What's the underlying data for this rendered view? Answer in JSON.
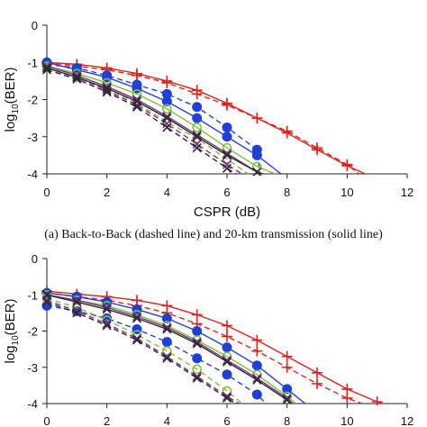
{
  "figure": {
    "caption_a": "(a) Back-to-Back (dashed line) and 20-km transmission (solid line)"
  },
  "chart_data": [
    {
      "type": "line",
      "panel": "a",
      "xlabel": "CSPR (dB)",
      "ylabel": "log10(BER)",
      "xlim": [
        0,
        12
      ],
      "ylim": [
        -4,
        0
      ],
      "xticks": [
        0,
        2,
        4,
        6,
        8,
        10,
        12
      ],
      "yticks": [
        0,
        -1,
        -2,
        -3,
        -4
      ],
      "grid": false,
      "legend": "none",
      "series": [
        {
          "color": "#e0201c",
          "marker": "plus",
          "dashed": false,
          "x": [
            0,
            1,
            2,
            3,
            4,
            5,
            6,
            7,
            8,
            9,
            10,
            10.6
          ],
          "y": [
            -1.0,
            -1.05,
            -1.15,
            -1.3,
            -1.5,
            -1.75,
            -2.1,
            -2.5,
            -2.9,
            -3.35,
            -3.78,
            -4.0
          ]
        },
        {
          "color": "#e0201c",
          "marker": "plus",
          "dashed": true,
          "x": [
            0,
            1,
            2,
            3,
            4,
            5,
            6,
            7,
            8,
            9,
            10,
            10.4
          ],
          "y": [
            -1.0,
            -1.1,
            -1.2,
            -1.35,
            -1.55,
            -1.85,
            -2.15,
            -2.5,
            -2.85,
            -3.3,
            -3.75,
            -4.0
          ]
        },
        {
          "color": "#1f3fd6",
          "marker": "circle",
          "dashed": false,
          "x": [
            0,
            1,
            2,
            3,
            4,
            5,
            6,
            7,
            7.8
          ],
          "y": [
            -1.0,
            -1.2,
            -1.4,
            -1.7,
            -2.05,
            -2.5,
            -3.0,
            -3.5,
            -4.0
          ]
        },
        {
          "color": "#1f3fd6",
          "marker": "circle",
          "dashed": true,
          "x": [
            0,
            1,
            2,
            3,
            4,
            5,
            6,
            7,
            7.1
          ],
          "y": [
            -1.05,
            -1.15,
            -1.35,
            -1.6,
            -1.85,
            -2.2,
            -2.75,
            -3.35,
            -4.0
          ]
        },
        {
          "color": "#7fbf3a",
          "marker": "ring",
          "dashed": false,
          "x": [
            0,
            1,
            2,
            3,
            4,
            5,
            6,
            7,
            7.6
          ],
          "y": [
            -1.1,
            -1.3,
            -1.55,
            -1.85,
            -2.25,
            -2.75,
            -3.3,
            -3.8,
            -4.0
          ]
        },
        {
          "color": "#7fbf3a",
          "marker": "ring",
          "dashed": true,
          "x": [
            0,
            1,
            2,
            3,
            4,
            5,
            6,
            6.7
          ],
          "y": [
            -1.15,
            -1.4,
            -1.7,
            -2.1,
            -2.6,
            -3.05,
            -3.6,
            -4.0
          ]
        },
        {
          "color": "#7a2e8c",
          "marker": "x",
          "dashed": false,
          "x": [
            0,
            1,
            2,
            3,
            4,
            5,
            6,
            7,
            7.2
          ],
          "y": [
            -1.1,
            -1.35,
            -1.65,
            -2.0,
            -2.45,
            -2.95,
            -3.45,
            -3.95,
            -4.0
          ]
        },
        {
          "color": "#7a2e8c",
          "marker": "x",
          "dashed": true,
          "x": [
            0,
            1,
            2,
            3,
            4,
            5,
            6,
            6.5
          ],
          "y": [
            -1.15,
            -1.4,
            -1.75,
            -2.15,
            -2.65,
            -3.2,
            -3.75,
            -4.0
          ]
        },
        {
          "color": "#2a2a2a",
          "marker": "x",
          "dashed": false,
          "x": [
            0,
            1,
            2,
            3,
            4,
            5,
            6,
            7,
            7.2
          ],
          "y": [
            -1.15,
            -1.4,
            -1.7,
            -2.05,
            -2.5,
            -3.0,
            -3.5,
            -3.95,
            -4.0
          ]
        },
        {
          "color": "#2a2a2a",
          "marker": "x",
          "dashed": true,
          "x": [
            0,
            1,
            2,
            3,
            4,
            5,
            6,
            6.3
          ],
          "y": [
            -1.2,
            -1.45,
            -1.8,
            -2.2,
            -2.75,
            -3.3,
            -3.85,
            -4.0
          ]
        }
      ]
    },
    {
      "type": "line",
      "panel": "b",
      "xlabel": "",
      "ylabel": "log10(BER)",
      "xlim": [
        0,
        12
      ],
      "ylim": [
        -4,
        0
      ],
      "xticks": [
        0,
        2,
        4,
        6,
        8,
        10,
        12
      ],
      "yticks": [
        0,
        -1,
        -2,
        -3,
        -4
      ],
      "grid": false,
      "legend": "none",
      "series": [
        {
          "color": "#e0201c",
          "marker": "plus",
          "dashed": false,
          "x": [
            0,
            1,
            2,
            3,
            4,
            5,
            6,
            7,
            8,
            9,
            10,
            11,
            11.2
          ],
          "y": [
            -0.9,
            -0.98,
            -1.05,
            -1.15,
            -1.3,
            -1.55,
            -1.85,
            -2.25,
            -2.7,
            -3.15,
            -3.6,
            -3.95,
            -4.0
          ]
        },
        {
          "color": "#e0201c",
          "marker": "plus",
          "dashed": true,
          "x": [
            0,
            1,
            2,
            3,
            4,
            5,
            6,
            7,
            8,
            9,
            10,
            10.5
          ],
          "y": [
            -0.95,
            -1.05,
            -1.15,
            -1.3,
            -1.5,
            -1.8,
            -2.15,
            -2.55,
            -3.0,
            -3.45,
            -3.85,
            -4.0
          ]
        },
        {
          "color": "#1f3fd6",
          "marker": "circle",
          "dashed": false,
          "x": [
            0,
            1,
            2,
            3,
            4,
            5,
            6,
            7,
            8,
            8.6
          ],
          "y": [
            -0.95,
            -1.05,
            -1.2,
            -1.4,
            -1.65,
            -2.0,
            -2.45,
            -2.95,
            -3.6,
            -4.0
          ]
        },
        {
          "color": "#1f3fd6",
          "marker": "circle",
          "dashed": true,
          "x": [
            0,
            1,
            2,
            3,
            4,
            5,
            6,
            7,
            7.3
          ],
          "y": [
            -1.3,
            -1.45,
            -1.65,
            -1.95,
            -2.3,
            -2.75,
            -3.2,
            -3.75,
            -4.0
          ]
        },
        {
          "color": "#7fbf3a",
          "marker": "ring",
          "dashed": false,
          "x": [
            0,
            1,
            2,
            3,
            4,
            5,
            6,
            7,
            8,
            8.3
          ],
          "y": [
            -1.0,
            -1.15,
            -1.3,
            -1.55,
            -1.85,
            -2.25,
            -2.7,
            -3.2,
            -3.8,
            -4.0
          ]
        },
        {
          "color": "#7fbf3a",
          "marker": "ring",
          "dashed": true,
          "x": [
            0,
            1,
            2,
            3,
            4,
            5,
            6,
            6.5
          ],
          "y": [
            -1.1,
            -1.35,
            -1.7,
            -2.1,
            -2.55,
            -3.05,
            -3.65,
            -4.0
          ]
        },
        {
          "color": "#7a2e8c",
          "marker": "x",
          "dashed": false,
          "x": [
            0,
            1,
            2,
            3,
            4,
            5,
            6,
            7,
            8,
            8.2
          ],
          "y": [
            -1.0,
            -1.15,
            -1.35,
            -1.6,
            -1.9,
            -2.3,
            -2.8,
            -3.3,
            -3.85,
            -4.0
          ]
        },
        {
          "color": "#7a2e8c",
          "marker": "x",
          "dashed": true,
          "x": [
            0,
            1,
            2,
            3,
            4,
            5,
            6,
            6.4
          ],
          "y": [
            -1.15,
            -1.45,
            -1.8,
            -2.2,
            -2.7,
            -3.25,
            -3.8,
            -4.0
          ]
        },
        {
          "color": "#2a2a2a",
          "marker": "x",
          "dashed": false,
          "x": [
            0,
            1,
            2,
            3,
            4,
            5,
            6,
            7,
            8,
            8.1
          ],
          "y": [
            -1.0,
            -1.2,
            -1.4,
            -1.65,
            -1.95,
            -2.35,
            -2.85,
            -3.35,
            -3.9,
            -4.0
          ]
        },
        {
          "color": "#2a2a2a",
          "marker": "x",
          "dashed": true,
          "x": [
            0,
            1,
            2,
            3,
            4,
            5,
            6,
            6.3
          ],
          "y": [
            -1.2,
            -1.5,
            -1.85,
            -2.25,
            -2.75,
            -3.3,
            -3.85,
            -4.0
          ]
        }
      ]
    }
  ]
}
